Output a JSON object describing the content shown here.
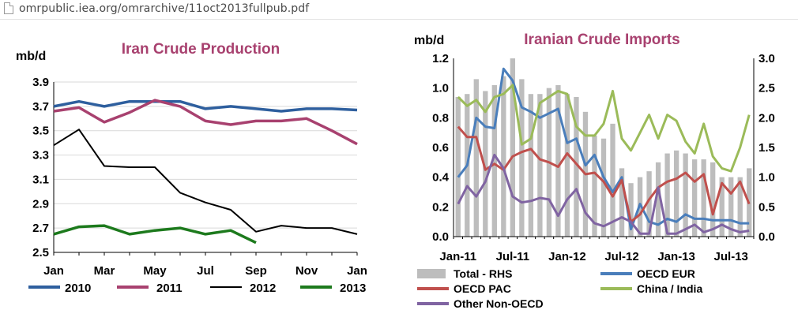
{
  "browser": {
    "url": "omrpublic.iea.org/omrarchive/11oct2013fullpub.pdf",
    "page_icon": "document-icon"
  },
  "chart_data": [
    {
      "type": "line",
      "title": "Iran Crude Production",
      "ylabel": "mb/d",
      "ylim": [
        2.5,
        3.9
      ],
      "y_ticks": [
        "3.9",
        "3.7",
        "3.5",
        "3.3",
        "3.1",
        "2.9",
        "2.7",
        "2.5"
      ],
      "x_tick_labels": [
        "Jan",
        "Mar",
        "May",
        "Jul",
        "Sep",
        "Nov",
        "Jan"
      ],
      "legend_position": "bottom",
      "series": [
        {
          "name": "2010",
          "color": "#2e5f9e",
          "values": [
            3.7,
            3.74,
            3.7,
            3.74,
            3.74,
            3.74,
            3.68,
            3.7,
            3.68,
            3.66,
            3.68,
            3.68,
            3.67
          ]
        },
        {
          "name": "2011",
          "color": "#a8416f",
          "values": [
            3.66,
            3.69,
            3.57,
            3.65,
            3.75,
            3.7,
            3.58,
            3.55,
            3.58,
            3.58,
            3.6,
            3.5,
            3.39
          ]
        },
        {
          "name": "2012",
          "color": "#000000",
          "values": [
            3.38,
            3.51,
            3.21,
            3.2,
            3.2,
            2.99,
            2.91,
            2.85,
            2.67,
            2.72,
            2.7,
            2.7,
            2.65
          ]
        },
        {
          "name": "2013",
          "color": "#1d7a1d",
          "values": [
            2.65,
            2.71,
            2.72,
            2.65,
            2.68,
            2.7,
            2.65,
            2.68,
            2.58
          ]
        }
      ]
    },
    {
      "type": "bar+line",
      "title": "Iranian Crude Imports",
      "ylabel": "mb/d",
      "ylim": [
        0.0,
        1.2
      ],
      "y2lim": [
        0.0,
        3.0
      ],
      "y_ticks": [
        "1.2",
        "1.0",
        "0.8",
        "0.6",
        "0.4",
        "0.2",
        "0.0"
      ],
      "y2_ticks": [
        "3.0",
        "2.5",
        "2.0",
        "1.5",
        "1.0",
        "0.5",
        "0.0"
      ],
      "x_tick_labels": [
        "Jan-11",
        "Jul-11",
        "Jan-12",
        "Jul-12",
        "Jan-13",
        "Jul-13"
      ],
      "months": [
        "Jan-11",
        "Feb-11",
        "Mar-11",
        "Apr-11",
        "May-11",
        "Jun-11",
        "Jul-11",
        "Aug-11",
        "Sep-11",
        "Oct-11",
        "Nov-11",
        "Dec-11",
        "Jan-12",
        "Feb-12",
        "Mar-12",
        "Apr-12",
        "May-12",
        "Jun-12",
        "Jul-12",
        "Aug-12",
        "Sep-12",
        "Oct-12",
        "Nov-12",
        "Dec-12",
        "Jan-13",
        "Feb-13",
        "Mar-13",
        "Apr-13",
        "May-13",
        "Jun-13",
        "Jul-13",
        "Aug-13",
        "Sep-13"
      ],
      "legend_position": "bottom",
      "bars": {
        "name": "Total - RHS",
        "color": "#bdbdbd",
        "values": [
          2.35,
          2.4,
          2.65,
          2.45,
          2.55,
          2.7,
          3.0,
          2.65,
          2.4,
          2.4,
          2.5,
          2.55,
          2.4,
          2.35,
          2.1,
          1.7,
          1.65,
          1.9,
          1.15,
          0.9,
          1.0,
          1.1,
          1.25,
          1.4,
          1.45,
          1.4,
          1.3,
          1.3,
          1.25,
          1.0,
          1.0,
          1.0,
          1.15
        ]
      },
      "series": [
        {
          "name": "OECD EUR",
          "axis": "left",
          "color": "#4a7ebb",
          "values": [
            0.4,
            0.48,
            0.8,
            0.74,
            0.73,
            1.13,
            1.05,
            0.87,
            0.84,
            0.8,
            0.83,
            0.86,
            0.63,
            0.66,
            0.48,
            0.55,
            0.4,
            0.3,
            0.4,
            0.05,
            0.22,
            0.1,
            0.08,
            0.12,
            0.1,
            0.15,
            0.12,
            0.12,
            0.11,
            0.11,
            0.11,
            0.09,
            0.09
          ]
        },
        {
          "name": "China / India",
          "axis": "right",
          "color": "#9bbb59",
          "values": [
            2.35,
            2.2,
            2.3,
            2.1,
            2.35,
            2.4,
            2.55,
            1.55,
            1.65,
            2.25,
            2.35,
            2.45,
            2.4,
            1.85,
            1.7,
            1.7,
            1.9,
            2.45,
            1.65,
            1.45,
            1.75,
            2.05,
            1.65,
            2.05,
            1.95,
            1.6,
            1.4,
            1.9,
            1.35,
            1.15,
            1.1,
            1.5,
            2.05
          ]
        },
        {
          "name": "OECD PAC",
          "axis": "left",
          "color": "#c0504d",
          "values": [
            0.74,
            0.67,
            0.67,
            0.45,
            0.49,
            0.45,
            0.54,
            0.57,
            0.59,
            0.52,
            0.5,
            0.47,
            0.56,
            0.49,
            0.42,
            0.43,
            0.37,
            0.27,
            0.38,
            0.1,
            0.15,
            0.25,
            0.33,
            0.37,
            0.39,
            0.43,
            0.37,
            0.42,
            0.15,
            0.36,
            0.29,
            0.37,
            0.22
          ]
        },
        {
          "name": "Other Non-OECD",
          "axis": "left",
          "color": "#8064a2",
          "values": [
            0.22,
            0.34,
            0.27,
            0.37,
            0.55,
            0.46,
            0.27,
            0.23,
            0.24,
            0.26,
            0.25,
            0.14,
            0.25,
            0.32,
            0.16,
            0.09,
            0.07,
            0.1,
            0.13,
            0.1,
            0.02,
            0.02,
            0.33,
            0.02,
            0.02,
            0.05,
            0.08,
            0.03,
            0.05,
            0.08,
            0.05,
            0.03,
            0.04
          ]
        }
      ]
    }
  ]
}
